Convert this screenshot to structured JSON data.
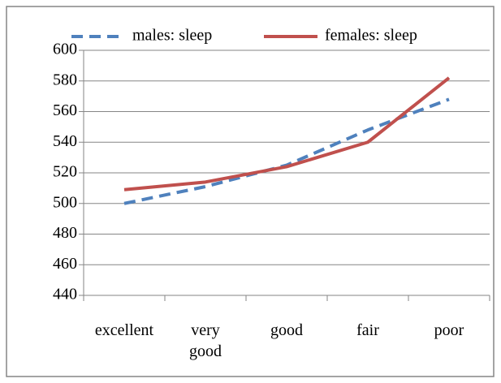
{
  "chart_data": {
    "type": "line",
    "categories": [
      "excellent",
      "very good",
      "good",
      "fair",
      "poor"
    ],
    "series": [
      {
        "name": "males: sleep",
        "color": "#4f81bd",
        "dashed": true,
        "values": [
          500,
          511,
          525,
          548,
          568
        ]
      },
      {
        "name": "females: sleep",
        "color": "#c0504d",
        "dashed": false,
        "values": [
          509,
          514,
          524,
          540,
          582
        ]
      }
    ],
    "ylim": [
      440,
      600
    ],
    "yticks": [
      440,
      460,
      480,
      500,
      520,
      540,
      560,
      580,
      600
    ],
    "grid": true,
    "legend": "top"
  }
}
